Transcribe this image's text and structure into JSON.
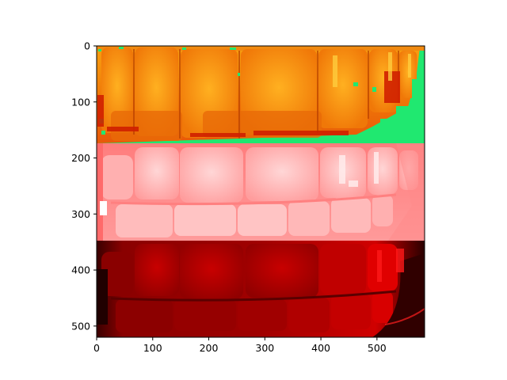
{
  "chart_data": {
    "type": "image",
    "description_of_axes": "image pixel coordinates",
    "x_ticks": [
      0,
      100,
      200,
      300,
      400,
      500
    ],
    "y_ticks": [
      0,
      100,
      200,
      300,
      400,
      500
    ],
    "xlim": [
      0,
      585
    ],
    "ylim": [
      520,
      0
    ],
    "panels": [
      {
        "name": "pseudocolor-orange-panel",
        "y_range": [
          0,
          173
        ]
      },
      {
        "name": "red-channel-light-panel",
        "y_range": [
          173,
          347
        ]
      },
      {
        "name": "red-channel-dark-panel",
        "y_range": [
          347,
          520
        ]
      }
    ]
  },
  "colors": {
    "orange_base": "#f08a10",
    "orange_bright": "#ffb020",
    "green_background": "#20e870",
    "pink_base": "#ff8f8f",
    "pink_bright": "#ffd2d2",
    "dark_red_base": "#9a0000",
    "dark_red_bright": "#e60000"
  }
}
